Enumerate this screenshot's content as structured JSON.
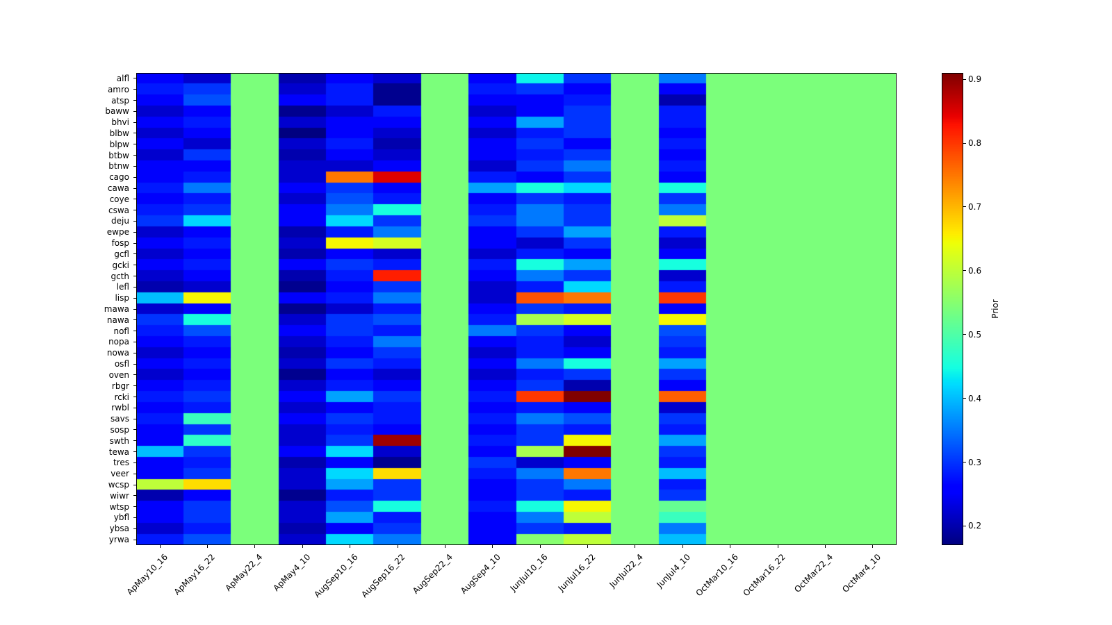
{
  "chart_data": {
    "type": "heatmap",
    "colormap": "jet",
    "title": "",
    "xlabel": "",
    "ylabel": "",
    "colorbar_label": "Prior",
    "colorbar_ticks": [
      0.2,
      0.3,
      0.4,
      0.5,
      0.6,
      0.7,
      0.8,
      0.9
    ],
    "vmin": 0.17,
    "vmax": 0.91,
    "uniform_prior_value": 0.54,
    "columns": [
      "ApMay10_16",
      "ApMay16_22",
      "ApMay22_4",
      "ApMay4_10",
      "AugSep10_16",
      "AugSep16_22",
      "AugSep22_4",
      "AugSep4_10",
      "JunJul10_16",
      "JunJul16_22",
      "JunJul22_4",
      "JunJul4_10",
      "OctMar10_16",
      "OctMar16_22",
      "OctMar22_4",
      "OctMar4_10"
    ],
    "rows": [
      "alfl",
      "amro",
      "atsp",
      "baww",
      "bhvi",
      "blbw",
      "blpw",
      "btbw",
      "btnw",
      "cago",
      "cawa",
      "coye",
      "cswa",
      "deju",
      "ewpe",
      "fosp",
      "gcfl",
      "gcki",
      "gcth",
      "lefl",
      "lisp",
      "mawa",
      "nawa",
      "nofl",
      "nopa",
      "nowa",
      "osfl",
      "oven",
      "rbgr",
      "rcki",
      "rwbl",
      "savs",
      "sosp",
      "swth",
      "tewa",
      "tres",
      "veer",
      "wcsp",
      "wiwr",
      "wtsp",
      "ybfl",
      "ybsa",
      "yrwa"
    ],
    "values": [
      [
        0.25,
        0.22,
        0.54,
        0.2,
        0.25,
        0.22,
        0.54,
        0.25,
        0.44,
        0.3,
        0.54,
        0.35,
        0.54,
        0.54,
        0.54,
        0.54
      ],
      [
        0.28,
        0.3,
        0.54,
        0.22,
        0.28,
        0.18,
        0.54,
        0.28,
        0.3,
        0.25,
        0.54,
        0.25,
        0.54,
        0.54,
        0.54,
        0.54
      ],
      [
        0.25,
        0.32,
        0.54,
        0.25,
        0.28,
        0.18,
        0.54,
        0.25,
        0.25,
        0.28,
        0.54,
        0.2,
        0.54,
        0.54,
        0.54,
        0.54
      ],
      [
        0.22,
        0.25,
        0.54,
        0.18,
        0.22,
        0.28,
        0.54,
        0.22,
        0.25,
        0.3,
        0.54,
        0.28,
        0.54,
        0.54,
        0.54,
        0.54
      ],
      [
        0.25,
        0.28,
        0.54,
        0.22,
        0.25,
        0.25,
        0.54,
        0.25,
        0.38,
        0.3,
        0.54,
        0.28,
        0.54,
        0.54,
        0.54,
        0.54
      ],
      [
        0.22,
        0.25,
        0.54,
        0.17,
        0.25,
        0.22,
        0.54,
        0.22,
        0.28,
        0.3,
        0.54,
        0.25,
        0.54,
        0.54,
        0.54,
        0.54
      ],
      [
        0.25,
        0.22,
        0.54,
        0.22,
        0.28,
        0.2,
        0.54,
        0.25,
        0.3,
        0.25,
        0.54,
        0.28,
        0.54,
        0.54,
        0.54,
        0.54
      ],
      [
        0.22,
        0.3,
        0.54,
        0.2,
        0.25,
        0.22,
        0.54,
        0.25,
        0.28,
        0.3,
        0.54,
        0.25,
        0.54,
        0.54,
        0.54,
        0.54
      ],
      [
        0.25,
        0.25,
        0.54,
        0.22,
        0.22,
        0.25,
        0.54,
        0.22,
        0.3,
        0.35,
        0.54,
        0.28,
        0.54,
        0.54,
        0.54,
        0.54
      ],
      [
        0.25,
        0.28,
        0.54,
        0.22,
        0.75,
        0.85,
        0.54,
        0.28,
        0.25,
        0.3,
        0.54,
        0.25,
        0.54,
        0.54,
        0.54,
        0.54
      ],
      [
        0.28,
        0.35,
        0.54,
        0.25,
        0.3,
        0.25,
        0.54,
        0.38,
        0.45,
        0.42,
        0.54,
        0.45,
        0.54,
        0.54,
        0.54,
        0.54
      ],
      [
        0.25,
        0.28,
        0.54,
        0.22,
        0.32,
        0.28,
        0.54,
        0.25,
        0.3,
        0.28,
        0.54,
        0.3,
        0.54,
        0.54,
        0.54,
        0.54
      ],
      [
        0.28,
        0.3,
        0.54,
        0.25,
        0.35,
        0.45,
        0.54,
        0.28,
        0.35,
        0.3,
        0.54,
        0.35,
        0.54,
        0.54,
        0.54,
        0.54
      ],
      [
        0.3,
        0.42,
        0.54,
        0.25,
        0.42,
        0.3,
        0.54,
        0.3,
        0.35,
        0.3,
        0.54,
        0.6,
        0.54,
        0.54,
        0.54,
        0.54
      ],
      [
        0.22,
        0.25,
        0.54,
        0.2,
        0.28,
        0.35,
        0.54,
        0.25,
        0.3,
        0.38,
        0.54,
        0.28,
        0.54,
        0.54,
        0.54,
        0.54
      ],
      [
        0.25,
        0.28,
        0.54,
        0.22,
        0.65,
        0.62,
        0.54,
        0.25,
        0.22,
        0.3,
        0.54,
        0.22,
        0.54,
        0.54,
        0.54,
        0.54
      ],
      [
        0.22,
        0.25,
        0.54,
        0.2,
        0.25,
        0.22,
        0.54,
        0.22,
        0.28,
        0.25,
        0.54,
        0.25,
        0.54,
        0.54,
        0.54,
        0.54
      ],
      [
        0.25,
        0.28,
        0.54,
        0.25,
        0.3,
        0.28,
        0.54,
        0.28,
        0.45,
        0.38,
        0.54,
        0.45,
        0.54,
        0.54,
        0.54,
        0.54
      ],
      [
        0.22,
        0.25,
        0.54,
        0.2,
        0.28,
        0.82,
        0.54,
        0.25,
        0.35,
        0.3,
        0.54,
        0.22,
        0.54,
        0.54,
        0.54,
        0.54
      ],
      [
        0.2,
        0.22,
        0.54,
        0.18,
        0.25,
        0.3,
        0.54,
        0.22,
        0.28,
        0.42,
        0.54,
        0.28,
        0.54,
        0.54,
        0.54,
        0.54
      ],
      [
        0.4,
        0.65,
        0.54,
        0.25,
        0.28,
        0.35,
        0.54,
        0.22,
        0.78,
        0.75,
        0.54,
        0.8,
        0.54,
        0.54,
        0.54,
        0.54
      ],
      [
        0.22,
        0.25,
        0.54,
        0.18,
        0.22,
        0.28,
        0.54,
        0.25,
        0.3,
        0.28,
        0.54,
        0.25,
        0.54,
        0.54,
        0.54,
        0.54
      ],
      [
        0.3,
        0.45,
        0.54,
        0.22,
        0.3,
        0.32,
        0.54,
        0.28,
        0.58,
        0.62,
        0.54,
        0.65,
        0.54,
        0.54,
        0.54,
        0.54
      ],
      [
        0.28,
        0.32,
        0.54,
        0.25,
        0.3,
        0.28,
        0.54,
        0.35,
        0.3,
        0.25,
        0.54,
        0.32,
        0.54,
        0.54,
        0.54,
        0.54
      ],
      [
        0.25,
        0.28,
        0.54,
        0.22,
        0.28,
        0.35,
        0.54,
        0.25,
        0.28,
        0.22,
        0.54,
        0.3,
        0.54,
        0.54,
        0.54,
        0.54
      ],
      [
        0.22,
        0.25,
        0.54,
        0.2,
        0.25,
        0.3,
        0.54,
        0.22,
        0.28,
        0.25,
        0.54,
        0.28,
        0.54,
        0.54,
        0.54,
        0.54
      ],
      [
        0.25,
        0.28,
        0.54,
        0.22,
        0.3,
        0.28,
        0.54,
        0.25,
        0.35,
        0.45,
        0.54,
        0.38,
        0.54,
        0.54,
        0.54,
        0.54
      ],
      [
        0.22,
        0.25,
        0.54,
        0.18,
        0.25,
        0.22,
        0.54,
        0.22,
        0.28,
        0.3,
        0.54,
        0.3,
        0.54,
        0.54,
        0.54,
        0.54
      ],
      [
        0.25,
        0.28,
        0.54,
        0.22,
        0.28,
        0.25,
        0.54,
        0.25,
        0.3,
        0.2,
        0.54,
        0.25,
        0.54,
        0.54,
        0.54,
        0.54
      ],
      [
        0.28,
        0.3,
        0.54,
        0.25,
        0.38,
        0.3,
        0.54,
        0.28,
        0.8,
        0.91,
        0.54,
        0.77,
        0.54,
        0.54,
        0.54,
        0.54
      ],
      [
        0.25,
        0.28,
        0.54,
        0.22,
        0.25,
        0.28,
        0.54,
        0.25,
        0.28,
        0.25,
        0.54,
        0.22,
        0.54,
        0.54,
        0.54,
        0.54
      ],
      [
        0.28,
        0.48,
        0.54,
        0.25,
        0.3,
        0.28,
        0.54,
        0.28,
        0.35,
        0.32,
        0.54,
        0.3,
        0.54,
        0.54,
        0.54,
        0.54
      ],
      [
        0.25,
        0.3,
        0.54,
        0.22,
        0.28,
        0.25,
        0.54,
        0.25,
        0.3,
        0.28,
        0.54,
        0.28,
        0.54,
        0.54,
        0.54,
        0.54
      ],
      [
        0.25,
        0.47,
        0.54,
        0.22,
        0.3,
        0.89,
        0.54,
        0.28,
        0.3,
        0.65,
        0.54,
        0.38,
        0.54,
        0.54,
        0.54,
        0.54
      ],
      [
        0.4,
        0.3,
        0.54,
        0.25,
        0.42,
        0.22,
        0.54,
        0.25,
        0.58,
        0.91,
        0.54,
        0.3,
        0.54,
        0.54,
        0.54,
        0.54
      ],
      [
        0.25,
        0.28,
        0.54,
        0.2,
        0.25,
        0.18,
        0.54,
        0.3,
        0.22,
        0.25,
        0.54,
        0.28,
        0.54,
        0.54,
        0.54,
        0.54
      ],
      [
        0.25,
        0.3,
        0.54,
        0.22,
        0.42,
        0.67,
        0.54,
        0.28,
        0.35,
        0.75,
        0.54,
        0.4,
        0.54,
        0.54,
        0.54,
        0.54
      ],
      [
        0.6,
        0.67,
        0.54,
        0.22,
        0.38,
        0.3,
        0.54,
        0.25,
        0.3,
        0.35,
        0.54,
        0.28,
        0.54,
        0.54,
        0.54,
        0.54
      ],
      [
        0.2,
        0.25,
        0.54,
        0.18,
        0.28,
        0.3,
        0.54,
        0.25,
        0.3,
        0.28,
        0.54,
        0.3,
        0.54,
        0.54,
        0.54,
        0.54
      ],
      [
        0.25,
        0.3,
        0.54,
        0.22,
        0.32,
        0.45,
        0.54,
        0.28,
        0.45,
        0.65,
        0.54,
        0.52,
        0.54,
        0.54,
        0.54,
        0.54
      ],
      [
        0.25,
        0.3,
        0.54,
        0.22,
        0.38,
        0.28,
        0.54,
        0.25,
        0.35,
        0.6,
        0.54,
        0.48,
        0.54,
        0.54,
        0.54,
        0.54
      ],
      [
        0.22,
        0.28,
        0.54,
        0.2,
        0.25,
        0.3,
        0.54,
        0.25,
        0.3,
        0.28,
        0.54,
        0.35,
        0.54,
        0.54,
        0.54,
        0.54
      ],
      [
        0.28,
        0.32,
        0.54,
        0.22,
        0.42,
        0.35,
        0.54,
        0.25,
        0.55,
        0.6,
        0.54,
        0.4,
        0.54,
        0.54,
        0.54,
        0.54
      ]
    ]
  }
}
